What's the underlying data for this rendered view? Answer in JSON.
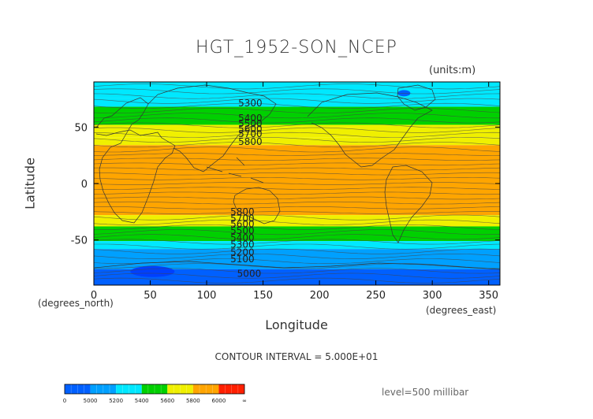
{
  "chart_data": {
    "type": "heatmap",
    "title": "HGT_1952-SON_NCEP",
    "units": "(units:m)",
    "xlabel": "Longitude",
    "ylabel": "Latitude",
    "x_unit_label": "(degrees_east)",
    "y_unit_label": "(degrees_north)",
    "xlim": [
      0,
      360
    ],
    "ylim": [
      -90,
      90
    ],
    "x_ticks": [
      0,
      50,
      100,
      150,
      200,
      250,
      300,
      350
    ],
    "y_ticks": [
      50,
      0,
      -50
    ],
    "contour_interval_text": "CONTOUR INTERVAL = 5.000E+01",
    "level_text": "level=500 millibar",
    "bands": [
      {
        "lat_top": 90,
        "lat_bottom": 76,
        "value": 5150,
        "color": "#00e8ff"
      },
      {
        "lat_top": 76,
        "lat_bottom": 68,
        "value": 5350,
        "color": "#00e8ff"
      },
      {
        "lat_top": 68,
        "lat_bottom": 52,
        "value": 5500,
        "color": "#00d000"
      },
      {
        "lat_top": 52,
        "lat_bottom": 41,
        "value": 5700,
        "color": "#f0f000"
      },
      {
        "lat_top": 41,
        "lat_bottom": 34,
        "value": 5800,
        "color": "#f0f000"
      },
      {
        "lat_top": 34,
        "lat_bottom": -28,
        "value": 5880,
        "color": "#ffa500"
      },
      {
        "lat_top": -28,
        "lat_bottom": -38,
        "value": 5750,
        "color": "#f0f000"
      },
      {
        "lat_top": -38,
        "lat_bottom": -51,
        "value": 5500,
        "color": "#00d000"
      },
      {
        "lat_top": -51,
        "lat_bottom": -58,
        "value": 5350,
        "color": "#00e8ff"
      },
      {
        "lat_top": -58,
        "lat_bottom": -76,
        "value": 5150,
        "color": "#00a0ff"
      },
      {
        "lat_top": -76,
        "lat_bottom": -90,
        "value": 4950,
        "color": "#0060ff"
      }
    ],
    "contour_labels": [
      {
        "text": "5300",
        "lon": 128,
        "lat": 71
      },
      {
        "text": "5400",
        "lon": 128,
        "lat": 58
      },
      {
        "text": "5500",
        "lon": 128,
        "lat": 53
      },
      {
        "text": "5600",
        "lon": 128,
        "lat": 48
      },
      {
        "text": "5700",
        "lon": 128,
        "lat": 44
      },
      {
        "text": "5800",
        "lon": 128,
        "lat": 37
      },
      {
        "text": "5800",
        "lon": 121,
        "lat": -25
      },
      {
        "text": "5700",
        "lon": 121,
        "lat": -31
      },
      {
        "text": "5600",
        "lon": 121,
        "lat": -36
      },
      {
        "text": "5500",
        "lon": 121,
        "lat": -42
      },
      {
        "text": "5400",
        "lon": 121,
        "lat": -48
      },
      {
        "text": "5300",
        "lon": 121,
        "lat": -54
      },
      {
        "text": "5200",
        "lon": 121,
        "lat": -61
      },
      {
        "text": "5100",
        "lon": 121,
        "lat": -67
      },
      {
        "text": "5000",
        "lon": 127,
        "lat": -80
      }
    ],
    "colorbar": {
      "labels": [
        "0",
        "5000",
        "5200",
        "5400",
        "5600",
        "5800",
        "6000",
        "∞"
      ],
      "colors": [
        "#0060ff",
        "#00a0ff",
        "#00e8ff",
        "#00d000",
        "#f0f000",
        "#ffa500",
        "#ff2000"
      ]
    }
  }
}
